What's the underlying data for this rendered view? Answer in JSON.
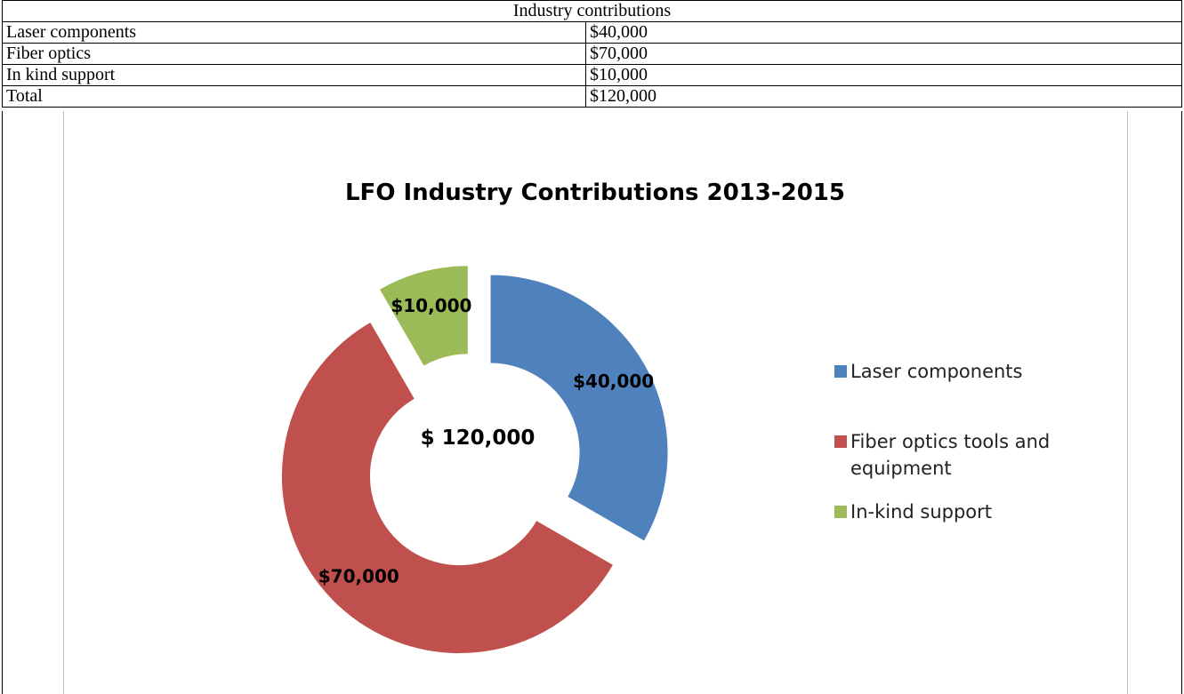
{
  "table": {
    "header": "Industry contributions",
    "rows": [
      [
        "Laser components",
        "$40,000"
      ],
      [
        "Fiber optics",
        "$70,000"
      ],
      [
        "In kind support",
        "$10,000"
      ],
      [
        "Total",
        "$120,000"
      ]
    ]
  },
  "chart_data": {
    "type": "pie",
    "title": "LFO Industry Contributions 2013-2015",
    "categories": [
      "Laser components",
      "Fiber optics tools and equipment",
      "In-kind support"
    ],
    "values": [
      40000,
      70000,
      10000
    ],
    "value_labels": [
      "$40,000",
      "$70,000",
      "$10,000"
    ],
    "colors": [
      "#4f81bd",
      "#c0504d",
      "#9bbb59"
    ],
    "center_label": "$ 120,000",
    "legend": "right"
  }
}
